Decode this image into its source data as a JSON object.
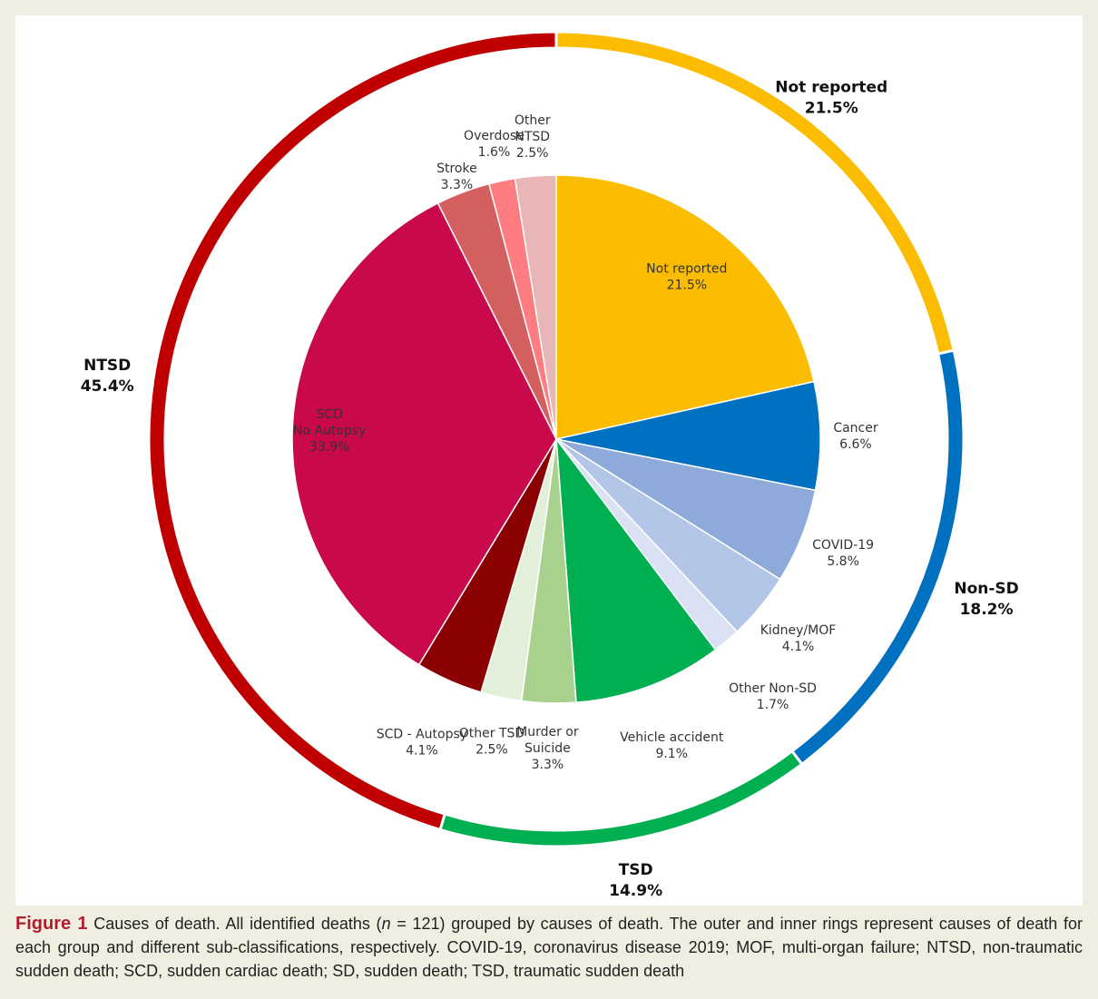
{
  "chart_data": {
    "type": "pie",
    "variant": "nested-donut",
    "outer_ring": {
      "segments": [
        {
          "label": "Not reported",
          "value": 21.5,
          "display": "21.5%",
          "color": "#fcbd00"
        },
        {
          "label": "Non-SD",
          "value": 18.2,
          "display": "18.2%",
          "color": "#0070c0"
        },
        {
          "label": "TSD",
          "value": 14.9,
          "display": "14.9%",
          "color": "#00b050"
        },
        {
          "label": "NTSD",
          "value": 45.4,
          "display": "45.4%",
          "color": "#c00000"
        }
      ]
    },
    "inner_pie": {
      "segments": [
        {
          "label": [
            "Not reported"
          ],
          "value": 21.5,
          "display": "21.5%",
          "color": "#fcbd00"
        },
        {
          "label": [
            "Cancer"
          ],
          "value": 6.6,
          "display": "6.6%",
          "color": "#0070c0"
        },
        {
          "label": [
            "COVID-19"
          ],
          "value": 5.8,
          "display": "5.8%",
          "color": "#8eaadb"
        },
        {
          "label": [
            "Kidney/MOF"
          ],
          "value": 4.1,
          "display": "4.1%",
          "color": "#b4c6e7"
        },
        {
          "label": [
            "Other Non-SD"
          ],
          "value": 1.7,
          "display": "1.7%",
          "color": "#d9e1f2"
        },
        {
          "label": [
            "Vehicle accident"
          ],
          "value": 9.1,
          "display": "9.1%",
          "color": "#00b050"
        },
        {
          "label": [
            "Murder or",
            "Suicide"
          ],
          "value": 3.3,
          "display": "3.3%",
          "color": "#a9d18e"
        },
        {
          "label": [
            "Other TSD"
          ],
          "value": 2.5,
          "display": "2.5%",
          "color": "#e2f0d9"
        },
        {
          "label": [
            "SCD - Autopsy"
          ],
          "value": 4.1,
          "display": "4.1%",
          "color": "#8b0000"
        },
        {
          "label": [
            "SCD",
            "No Autopsy"
          ],
          "value": 33.9,
          "display": "33.9%",
          "color": "#c9094b"
        },
        {
          "label": [
            "Stroke"
          ],
          "value": 3.3,
          "display": "3.3%",
          "color": "#d45f5f"
        },
        {
          "label": [
            "Overdose"
          ],
          "value": 1.6,
          "display": "1.6%",
          "color": "#ff7c80"
        },
        {
          "label": [
            "Other",
            "NTSD"
          ],
          "value": 2.5,
          "display": "2.5%",
          "color": "#e8b6b6"
        }
      ]
    }
  },
  "caption": {
    "label": "Figure 1",
    "text_before_n": " Causes of death. All identified deaths (",
    "n_symbol": "n",
    "text_after_n": " = 121) grouped by causes of death. The outer and inner rings represent causes of death for each group and different sub-classifications, respectively. COVID-19, coronavirus disease 2019; MOF, multi-organ failure; NTSD, non-traumatic sudden death; SCD, sudden cardiac death; SD, sudden death; TSD, traumatic sudden death"
  }
}
